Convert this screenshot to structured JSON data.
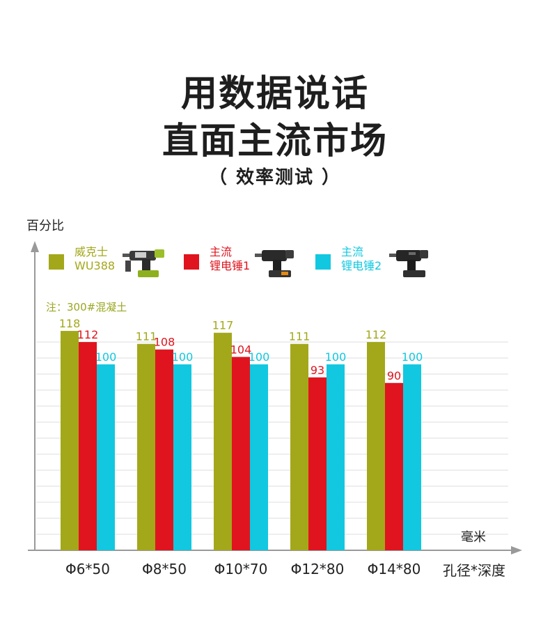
{
  "header": {
    "title_line1": "用数据说话",
    "title_line2": "直面主流市场",
    "subtitle": "（ 效率测试 ）"
  },
  "note": "注：300#混凝土",
  "unit_label": "毫米",
  "colors": {
    "series1": "#a3a81a",
    "series2": "#e0141e",
    "series3": "#11c8e0",
    "axis": "#999999",
    "grid": "#dddddd"
  },
  "legend": [
    {
      "line1": "威克士",
      "line2": "WU388",
      "icon": "hammer-drill-green-icon"
    },
    {
      "line1": "主流",
      "line2": "锂电锤1",
      "icon": "hammer-drill-black-icon"
    },
    {
      "line1": "主流",
      "line2": "锂电锤2",
      "icon": "hammer-drill-black-icon"
    }
  ],
  "chart_data": {
    "type": "bar",
    "ylabel": "百分比",
    "xlabel": "孔径*深度",
    "categories": [
      "Φ6*50",
      "Φ8*50",
      "Φ10*70",
      "Φ12*80",
      "Φ14*80"
    ],
    "series": [
      {
        "name": "威克士 WU388",
        "values": [
          118,
          111,
          117,
          111,
          112
        ]
      },
      {
        "name": "主流 锂电锤1",
        "values": [
          112,
          108,
          104,
          93,
          90
        ]
      },
      {
        "name": "主流 锂电锤2",
        "values": [
          100,
          100,
          100,
          100,
          100
        ]
      }
    ],
    "ylim": [
      0,
      136
    ],
    "grid": true,
    "legend_position": "top-left",
    "data_labels": true
  }
}
